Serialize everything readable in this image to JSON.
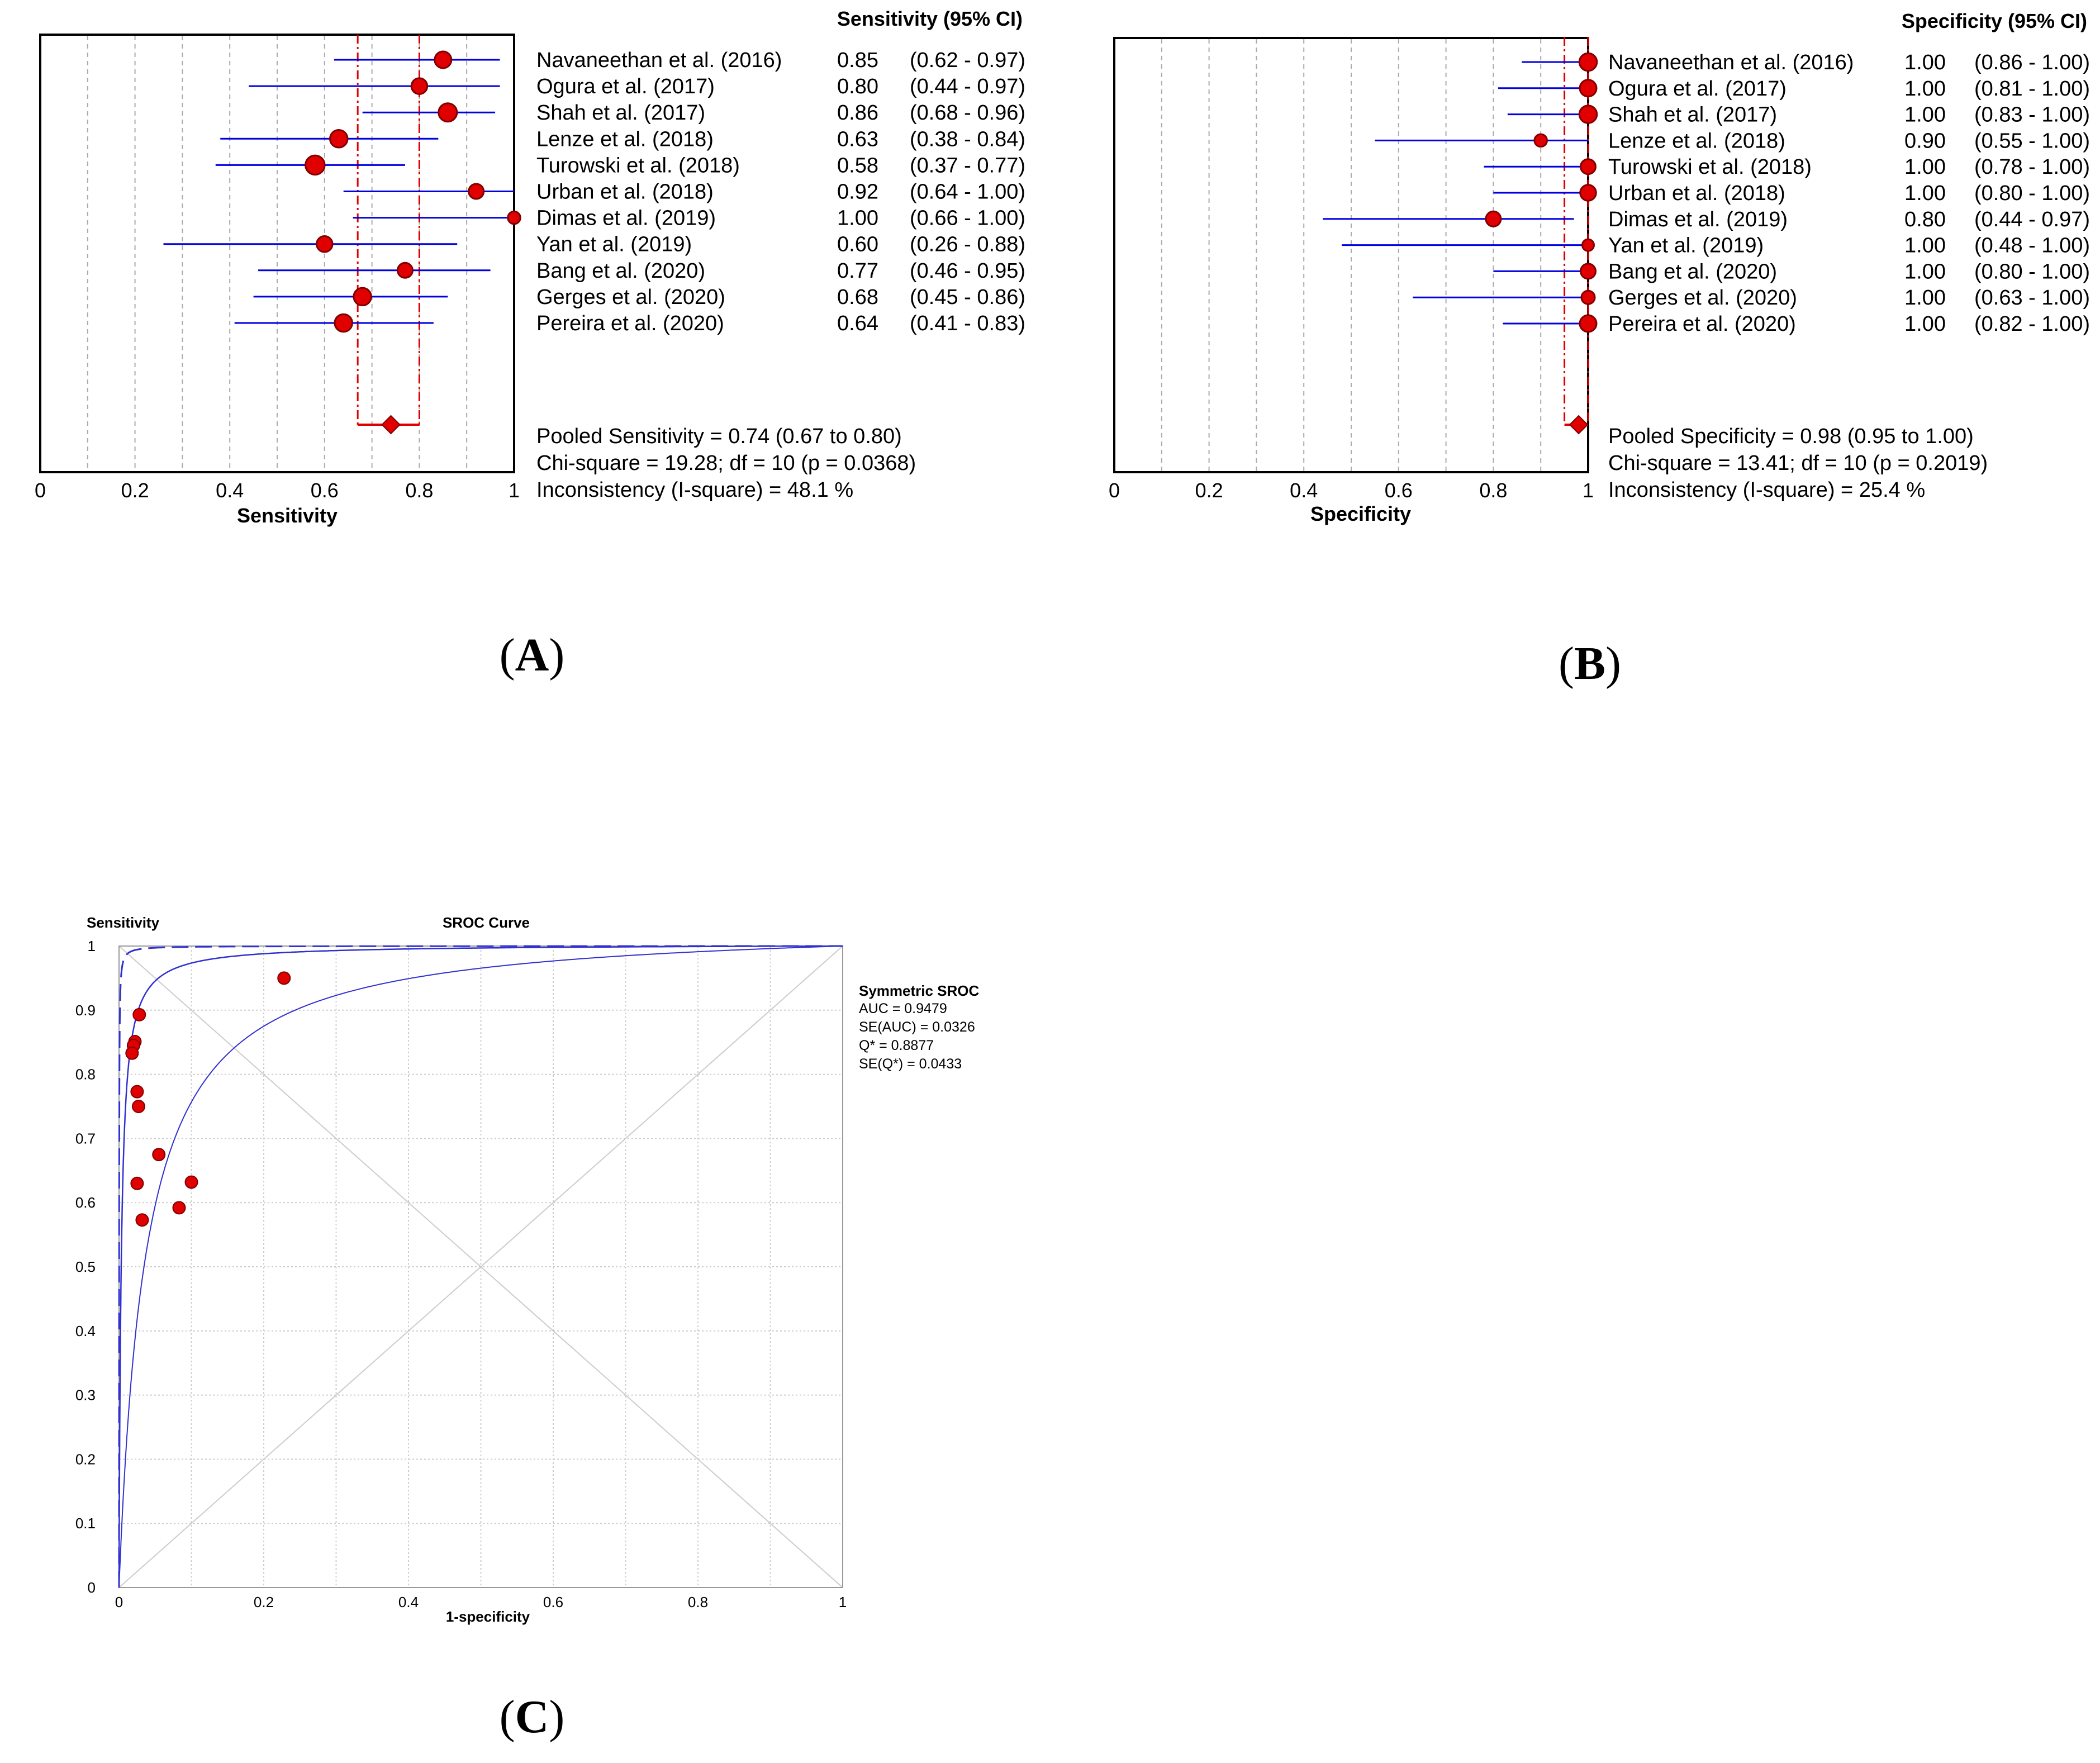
{
  "chart_data": [
    {
      "type": "forest",
      "id": "A",
      "panel_label": "A",
      "xlabel": "Sensitivity",
      "xlim": [
        0,
        1
      ],
      "ticks": [
        "0",
        "0.2",
        "0.4",
        "0.6",
        "0.8",
        "1"
      ],
      "header": "Sensitivity (95%  CI)",
      "studies": [
        {
          "name": "Navaneethan et al. (2016)",
          "est": 0.85,
          "lo": 0.62,
          "hi": 0.97,
          "est_text": "0.85",
          "ci_text": "(0.62 - 0.97)"
        },
        {
          "name": "Ogura et al. (2017)",
          "est": 0.8,
          "lo": 0.44,
          "hi": 0.97,
          "est_text": "0.80",
          "ci_text": "(0.44 - 0.97)"
        },
        {
          "name": "Shah et al. (2017)",
          "est": 0.86,
          "lo": 0.68,
          "hi": 0.96,
          "est_text": "0.86",
          "ci_text": "(0.68 - 0.96)"
        },
        {
          "name": "Lenze et al. (2018)",
          "est": 0.63,
          "lo": 0.38,
          "hi": 0.84,
          "est_text": "0.63",
          "ci_text": "(0.38 - 0.84)"
        },
        {
          "name": "Turowski et al. (2018)",
          "est": 0.58,
          "lo": 0.37,
          "hi": 0.77,
          "est_text": "0.58",
          "ci_text": "(0.37 - 0.77)"
        },
        {
          "name": "Urban et al. (2018)",
          "est": 0.92,
          "lo": 0.64,
          "hi": 1.0,
          "est_text": "0.92",
          "ci_text": "(0.64 - 1.00)"
        },
        {
          "name": "Dimas et al. (2019)",
          "est": 1.0,
          "lo": 0.66,
          "hi": 1.0,
          "est_text": "1.00",
          "ci_text": "(0.66 - 1.00)"
        },
        {
          "name": "Yan et al. (2019)",
          "est": 0.6,
          "lo": 0.26,
          "hi": 0.88,
          "est_text": "0.60",
          "ci_text": "(0.26 - 0.88)"
        },
        {
          "name": "Bang et al. (2020)",
          "est": 0.77,
          "lo": 0.46,
          "hi": 0.95,
          "est_text": "0.77",
          "ci_text": "(0.46 - 0.95)"
        },
        {
          "name": "Gerges  et al. (2020)",
          "est": 0.68,
          "lo": 0.45,
          "hi": 0.86,
          "est_text": "0.68",
          "ci_text": "(0.45 - 0.86)"
        },
        {
          "name": "Pereira et al. (2020)",
          "est": 0.64,
          "lo": 0.41,
          "hi": 0.83,
          "est_text": "0.64",
          "ci_text": "(0.41 - 0.83)"
        }
      ],
      "marker_weights": [
        1.0,
        0.95,
        1.1,
        1.05,
        1.15,
        0.9,
        0.75,
        0.95,
        0.9,
        1.05,
        1.05
      ],
      "pooled": {
        "est": 0.74,
        "lo": 0.67,
        "hi": 0.8
      },
      "summary": [
        "Pooled Sensitivity = 0.74 (0.67 to 0.80)",
        "Chi-square = 19.28; df =   10 (p = 0.0368)",
        "Inconsistency (I-square) = 48.1 %"
      ]
    },
    {
      "type": "forest",
      "id": "B",
      "panel_label": "B",
      "xlabel": "Specificity",
      "xlim": [
        0,
        1
      ],
      "ticks": [
        "0",
        "0.2",
        "0.4",
        "0.6",
        "0.8",
        "1"
      ],
      "header": "Specificity (95%  CI)",
      "studies": [
        {
          "name": "Navaneethan et al. (2016)",
          "est": 1.0,
          "lo": 0.86,
          "hi": 1.0,
          "est_text": "1.00",
          "ci_text": "(0.86 - 1.00)"
        },
        {
          "name": "Ogura et al. (2017)",
          "est": 1.0,
          "lo": 0.81,
          "hi": 1.0,
          "est_text": "1.00",
          "ci_text": "(0.81 - 1.00)"
        },
        {
          "name": "Shah et al. (2017)",
          "est": 1.0,
          "lo": 0.83,
          "hi": 1.0,
          "est_text": "1.00",
          "ci_text": "(0.83 - 1.00)"
        },
        {
          "name": "Lenze et al. (2018)",
          "est": 0.9,
          "lo": 0.55,
          "hi": 1.0,
          "est_text": "0.90",
          "ci_text": "(0.55 - 1.00)"
        },
        {
          "name": "Turowski et al. (2018)",
          "est": 1.0,
          "lo": 0.78,
          "hi": 1.0,
          "est_text": "1.00",
          "ci_text": "(0.78 - 1.00)"
        },
        {
          "name": "Urban et al. (2018)",
          "est": 1.0,
          "lo": 0.8,
          "hi": 1.0,
          "est_text": "1.00",
          "ci_text": "(0.80 - 1.00)"
        },
        {
          "name": "Dimas et al. (2019)",
          "est": 0.8,
          "lo": 0.44,
          "hi": 0.97,
          "est_text": "0.80",
          "ci_text": "(0.44 - 0.97)"
        },
        {
          "name": "Yan et al. (2019)",
          "est": 1.0,
          "lo": 0.48,
          "hi": 1.0,
          "est_text": "1.00",
          "ci_text": "(0.48 - 1.00)"
        },
        {
          "name": "Bang et al. (2020)",
          "est": 1.0,
          "lo": 0.8,
          "hi": 1.0,
          "est_text": "1.00",
          "ci_text": "(0.80 - 1.00)"
        },
        {
          "name": "Gerges  et al. (2020)",
          "est": 1.0,
          "lo": 0.63,
          "hi": 1.0,
          "est_text": "1.00",
          "ci_text": "(0.63 - 1.00)"
        },
        {
          "name": "Pereira et al. (2020)",
          "est": 1.0,
          "lo": 0.82,
          "hi": 1.0,
          "est_text": "1.00",
          "ci_text": "(0.82 - 1.00)"
        }
      ],
      "marker_weights": [
        1.05,
        1.0,
        1.05,
        0.75,
        0.9,
        0.95,
        0.9,
        0.7,
        0.9,
        0.8,
        1.0
      ],
      "pooled": {
        "est": 0.98,
        "lo": 0.95,
        "hi": 1.0
      },
      "summary": [
        "Pooled Specificity = 0.98 (0.95 to 1.00)",
        "Chi-square = 13.41; df =   10 (p = 0.2019)",
        "Inconsistency (I-square) = 25.4 %"
      ]
    },
    {
      "type": "scatter",
      "id": "C",
      "panel_label": "C",
      "title": "SROC Curve",
      "ylabel": "Sensitivity",
      "xlabel": "1-specificity",
      "xlim": [
        0,
        1
      ],
      "ylim": [
        0,
        1
      ],
      "xticks": [
        "0",
        "0.2",
        "0.4",
        "0.6",
        "0.8",
        "1"
      ],
      "yticks": [
        "0",
        "0.1",
        "0.2",
        "0.3",
        "0.4",
        "0.5",
        "0.6",
        "0.7",
        "0.8",
        "0.9",
        "1"
      ],
      "points": [
        {
          "x": 0.028,
          "y": 0.893
        },
        {
          "x": 0.022,
          "y": 0.851
        },
        {
          "x": 0.02,
          "y": 0.845
        },
        {
          "x": 0.018,
          "y": 0.833
        },
        {
          "x": 0.025,
          "y": 0.773
        },
        {
          "x": 0.027,
          "y": 0.75
        },
        {
          "x": 0.055,
          "y": 0.675
        },
        {
          "x": 0.1,
          "y": 0.632
        },
        {
          "x": 0.025,
          "y": 0.63
        },
        {
          "x": 0.083,
          "y": 0.592
        },
        {
          "x": 0.032,
          "y": 0.573
        },
        {
          "x": 0.228,
          "y": 0.95
        }
      ],
      "auc": 0.9479,
      "curve_band": {
        "center_dor": 330,
        "lower_dor": 28,
        "upper_dor": 7000
      },
      "legend_title": "Symmetric SROC",
      "legend_lines": [
        "AUC = 0.9479",
        "SE(AUC) = 0.0326",
        "Q* = 0.8877",
        "SE(Q*) = 0.0433"
      ]
    }
  ],
  "colors": {
    "ci_line": "#0000e0",
    "marker_fill": "#e00000",
    "marker_stroke": "#800000",
    "pooled_line": "#e00000",
    "grid": "#aaaaaa",
    "curve": "#3030d0"
  }
}
